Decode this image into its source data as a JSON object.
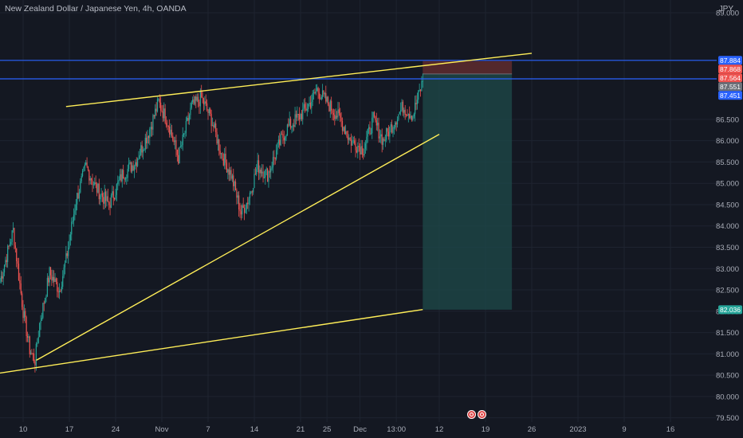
{
  "header": {
    "title": "New Zealand Dollar / Japanese Yen, 4h, OANDA",
    "currency": "JPY"
  },
  "colors": {
    "background": "#141822",
    "up": "#26a69a",
    "down": "#ef5350",
    "trendline": "#ffee58",
    "hline": "#2962ff",
    "target_zone": "#1d4a4a",
    "stop_zone": "#5a2a2e"
  },
  "events": [
    "event-icon",
    "event-icon"
  ],
  "chart_data": {
    "type": "candlestick",
    "title": "New Zealand Dollar / Japanese Yen, 4h, OANDA",
    "ylim": [
      79.4,
      89.3
    ],
    "yticks": [
      79.5,
      80.0,
      80.5,
      81.0,
      81.5,
      82.0,
      82.5,
      83.0,
      83.5,
      84.0,
      84.5,
      85.0,
      85.5,
      86.0,
      86.5,
      89.0
    ],
    "ytick_labels": [
      "79.500",
      "80.000",
      "80.500",
      "81.000",
      "81.500",
      "82.000",
      "82.500",
      "83.000",
      "83.500",
      "84.000",
      "84.500",
      "85.000",
      "85.500",
      "86.000",
      "86.500",
      "89.000"
    ],
    "xticks": [
      "10",
      "17",
      "24",
      "Nov",
      "7",
      "14",
      "21",
      "25",
      "Dec",
      "13:00",
      "12",
      "19",
      "26",
      "2023",
      "9",
      "16"
    ],
    "xtick_positions_days": [
      0,
      7,
      14,
      21,
      28,
      35,
      42,
      46,
      51,
      56.5,
      63,
      70,
      77,
      84,
      91,
      98
    ],
    "xlim_days": [
      -3.5,
      105
    ],
    "last_bar_day": 60.5,
    "price_tags": [
      {
        "label": "87.884",
        "value": 87.884,
        "color": "#2962ff"
      },
      {
        "label": "87.868",
        "value": 87.868,
        "color": "#ef5350"
      },
      {
        "label": "87.564",
        "value": 87.564,
        "color": "#ef5350"
      },
      {
        "label": "87.551",
        "value": 87.551,
        "color": "#6b6f78"
      },
      {
        "label": "87.451",
        "value": 87.451,
        "color": "#2962ff"
      },
      {
        "label": "82.036",
        "value": 82.036,
        "color": "#26a69a"
      }
    ],
    "horizontal_lines": [
      87.884,
      87.451
    ],
    "position": {
      "entry": 87.564,
      "stop": 87.868,
      "target": 82.036,
      "start_day": 60.5,
      "end_day": 74.0
    },
    "trendlines": [
      {
        "from": [
          -3.5,
          80.55
        ],
        "to": [
          60.5,
          82.04
        ]
      },
      {
        "from": [
          2,
          80.85
        ],
        "to": [
          63,
          86.15
        ]
      },
      {
        "from": [
          6.5,
          86.8
        ],
        "to": [
          77,
          88.05
        ]
      }
    ],
    "anchors": [
      [
        -3.5,
        82.7
      ],
      [
        -1.5,
        83.9
      ],
      [
        0,
        82.0
      ],
      [
        1,
        81.1
      ],
      [
        1.8,
        80.85
      ],
      [
        2.5,
        81.7
      ],
      [
        4,
        82.9
      ],
      [
        5.5,
        82.5
      ],
      [
        6.5,
        83.2
      ],
      [
        8,
        84.6
      ],
      [
        9.5,
        85.4
      ],
      [
        11,
        84.9
      ],
      [
        13,
        84.5
      ],
      [
        15,
        85.2
      ],
      [
        17,
        85.5
      ],
      [
        19,
        86.2
      ],
      [
        20.5,
        86.9
      ],
      [
        22,
        86.4
      ],
      [
        23.5,
        85.6
      ],
      [
        25.5,
        86.8
      ],
      [
        27,
        87.0
      ],
      [
        28.5,
        86.5
      ],
      [
        30,
        85.7
      ],
      [
        31.5,
        85.2
      ],
      [
        33,
        84.3
      ],
      [
        34,
        84.6
      ],
      [
        35.5,
        85.4
      ],
      [
        37,
        85.2
      ],
      [
        39,
        86.0
      ],
      [
        40,
        86.3
      ],
      [
        42,
        86.6
      ],
      [
        43.5,
        86.9
      ],
      [
        44.5,
        87.2
      ],
      [
        46,
        86.9
      ],
      [
        48,
        86.5
      ],
      [
        49.5,
        86.0
      ],
      [
        51.5,
        85.8
      ],
      [
        53,
        86.5
      ],
      [
        54.5,
        86.0
      ],
      [
        56,
        86.4
      ],
      [
        57.5,
        86.8
      ],
      [
        59,
        86.6
      ],
      [
        60.5,
        87.4
      ]
    ]
  }
}
